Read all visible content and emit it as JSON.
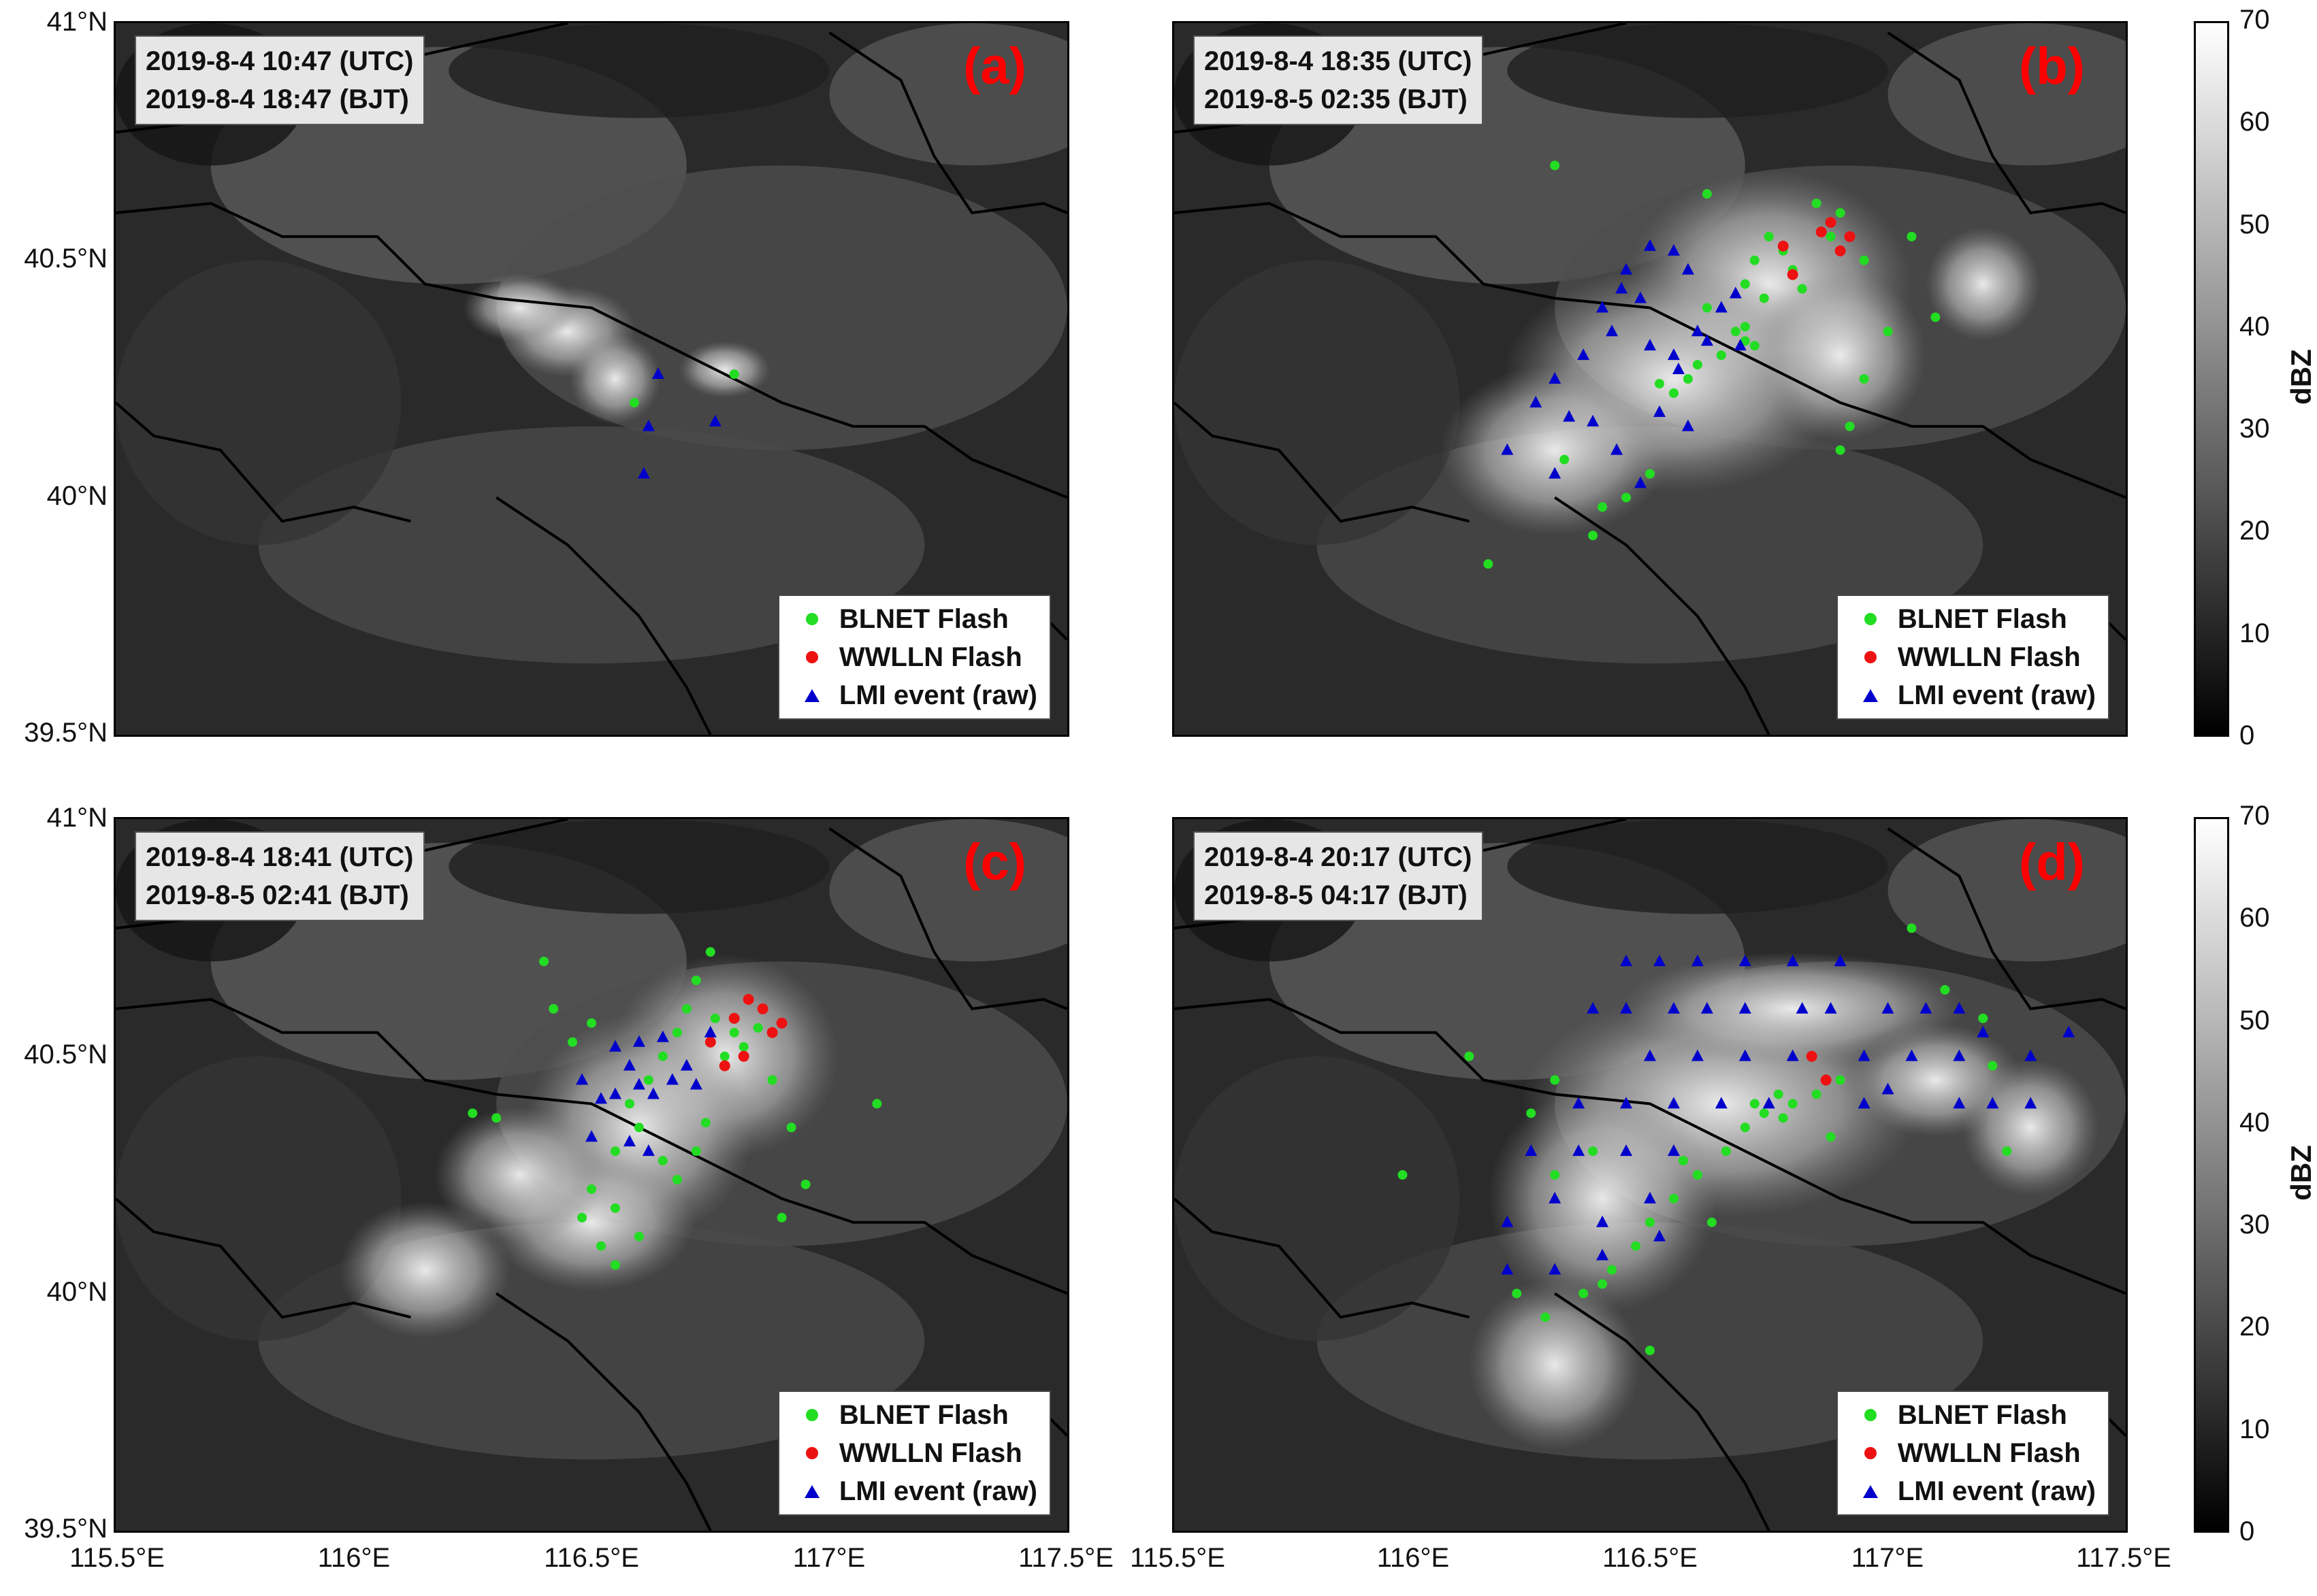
{
  "map_bounds": {
    "lon_min": 115.5,
    "lon_max": 117.5,
    "lat_min": 39.5,
    "lat_max": 41.0
  },
  "y_ticks": [
    {
      "lat": 41.0,
      "label": "41°N"
    },
    {
      "lat": 40.5,
      "label": "40.5°N"
    },
    {
      "lat": 40.0,
      "label": "40°N"
    },
    {
      "lat": 39.5,
      "label": "39.5°N"
    }
  ],
  "x_ticks_left": [
    {
      "lon": 115.5,
      "label": "115.5°E"
    },
    {
      "lon": 116.0,
      "label": "116°E"
    },
    {
      "lon": 116.5,
      "label": "116.5°E"
    },
    {
      "lon": 117.0,
      "label": "117°E"
    },
    {
      "lon": 117.5,
      "label": "117.5°E"
    }
  ],
  "x_ticks_right": [
    {
      "lon": 115.5,
      "label": "115.5°E"
    },
    {
      "lon": 116.0,
      "label": "116°E"
    },
    {
      "lon": 116.5,
      "label": "116.5°E"
    },
    {
      "lon": 117.0,
      "label": "117°E"
    },
    {
      "lon": 117.5,
      "label": "117.5°E"
    }
  ],
  "colorbar": {
    "unit": "dBZ",
    "min": 0,
    "max": 70,
    "ticks": [
      "0",
      "10",
      "20",
      "30",
      "40",
      "50",
      "60",
      "70"
    ]
  },
  "legend": {
    "blnet": "BLNET Flash",
    "wwlln": "WWLLN Flash",
    "lmi": "LMI event (raw)"
  },
  "colors": {
    "blnet": "#22dd22",
    "wwlln": "#ee1111",
    "lmi": "#0000cc",
    "label": "#ff0000"
  },
  "panels": [
    {
      "label": "(a)",
      "utc": "2019-8-4 10:47 (UTC)",
      "bjt": "2019-8-4 18:47 (BJT)",
      "storm": [
        [
          116.45,
          40.35,
          0.12,
          0.08
        ],
        [
          116.55,
          40.25,
          0.08,
          0.08
        ],
        [
          116.78,
          40.27,
          0.08,
          0.05
        ],
        [
          116.35,
          40.4,
          0.1,
          0.06
        ]
      ],
      "blnet": [
        [
          116.59,
          40.2
        ],
        [
          116.8,
          40.26
        ]
      ],
      "wwlln": [],
      "lmi": [
        [
          116.64,
          40.26
        ],
        [
          116.62,
          40.15
        ],
        [
          116.76,
          40.16
        ],
        [
          116.61,
          40.05
        ]
      ]
    },
    {
      "label": "(b)",
      "utc": "2019-8-4 18:35 (UTC)",
      "bjt": "2019-8-5 02:35 (BJT)",
      "storm": [
        [
          116.75,
          40.45,
          0.25,
          0.2
        ],
        [
          116.55,
          40.25,
          0.3,
          0.2
        ],
        [
          116.3,
          40.1,
          0.2,
          0.15
        ],
        [
          116.9,
          40.3,
          0.15,
          0.15
        ],
        [
          117.2,
          40.45,
          0.1,
          0.1
        ]
      ],
      "blnet": [
        [
          116.75,
          40.55
        ],
        [
          116.78,
          40.52
        ],
        [
          116.72,
          40.5
        ],
        [
          116.8,
          40.48
        ],
        [
          116.7,
          40.45
        ],
        [
          116.85,
          40.62
        ],
        [
          116.88,
          40.55
        ],
        [
          116.68,
          40.35
        ],
        [
          116.7,
          40.33
        ],
        [
          116.65,
          40.3
        ],
        [
          116.6,
          40.28
        ],
        [
          116.58,
          40.25
        ],
        [
          116.55,
          40.22
        ],
        [
          116.52,
          40.24
        ],
        [
          116.62,
          40.4
        ],
        [
          116.74,
          40.42
        ],
        [
          116.82,
          40.44
        ],
        [
          116.9,
          40.6
        ],
        [
          116.95,
          40.5
        ],
        [
          117.0,
          40.35
        ],
        [
          116.95,
          40.25
        ],
        [
          116.92,
          40.15
        ],
        [
          116.9,
          40.1
        ],
        [
          116.45,
          40.0
        ],
        [
          116.4,
          39.98
        ],
        [
          116.38,
          39.92
        ],
        [
          116.32,
          40.08
        ],
        [
          116.5,
          40.05
        ],
        [
          116.3,
          40.7
        ],
        [
          116.16,
          39.86
        ],
        [
          116.62,
          40.64
        ],
        [
          117.05,
          40.55
        ],
        [
          117.1,
          40.38
        ],
        [
          116.7,
          40.36
        ],
        [
          116.72,
          40.32
        ]
      ],
      "wwlln": [
        [
          116.78,
          40.53
        ],
        [
          116.8,
          40.47
        ],
        [
          116.86,
          40.56
        ],
        [
          116.9,
          40.52
        ],
        [
          116.92,
          40.55
        ],
        [
          116.88,
          40.58
        ]
      ],
      "lmi": [
        [
          116.5,
          40.53
        ],
        [
          116.55,
          40.52
        ],
        [
          116.45,
          40.48
        ],
        [
          116.48,
          40.42
        ],
        [
          116.4,
          40.4
        ],
        [
          116.42,
          40.35
        ],
        [
          116.5,
          40.32
        ],
        [
          116.55,
          40.3
        ],
        [
          116.6,
          40.35
        ],
        [
          116.65,
          40.4
        ],
        [
          116.62,
          40.33
        ],
        [
          116.68,
          40.43
        ],
        [
          116.58,
          40.48
        ],
        [
          116.36,
          40.3
        ],
        [
          116.3,
          40.25
        ],
        [
          116.26,
          40.2
        ],
        [
          116.33,
          40.17
        ],
        [
          116.2,
          40.1
        ],
        [
          116.3,
          40.05
        ],
        [
          116.43,
          40.1
        ],
        [
          116.48,
          40.03
        ],
        [
          116.58,
          40.15
        ],
        [
          116.52,
          40.18
        ],
        [
          116.38,
          40.16
        ],
        [
          116.44,
          40.44
        ],
        [
          116.56,
          40.27
        ],
        [
          116.69,
          40.32
        ]
      ]
    },
    {
      "label": "(c)",
      "utc": "2019-8-4 18:41 (UTC)",
      "bjt": "2019-8-5 02:41 (BJT)",
      "storm": [
        [
          116.78,
          40.5,
          0.2,
          0.18
        ],
        [
          116.6,
          40.35,
          0.2,
          0.2
        ],
        [
          116.5,
          40.15,
          0.18,
          0.12
        ],
        [
          116.15,
          40.05,
          0.15,
          0.12
        ],
        [
          116.35,
          40.25,
          0.15,
          0.12
        ]
      ],
      "blnet": [
        [
          116.8,
          40.55
        ],
        [
          116.82,
          40.52
        ],
        [
          116.78,
          40.5
        ],
        [
          116.85,
          40.56
        ],
        [
          116.76,
          40.58
        ],
        [
          116.7,
          40.6
        ],
        [
          116.72,
          40.66
        ],
        [
          116.75,
          40.72
        ],
        [
          116.68,
          40.55
        ],
        [
          116.65,
          40.5
        ],
        [
          116.62,
          40.45
        ],
        [
          116.58,
          40.4
        ],
        [
          116.6,
          40.35
        ],
        [
          116.55,
          40.3
        ],
        [
          116.5,
          40.22
        ],
        [
          116.55,
          40.18
        ],
        [
          116.6,
          40.12
        ],
        [
          116.52,
          40.1
        ],
        [
          116.65,
          40.28
        ],
        [
          116.68,
          40.24
        ],
        [
          116.72,
          40.3
        ],
        [
          116.88,
          40.45
        ],
        [
          116.92,
          40.35
        ],
        [
          116.95,
          40.23
        ],
        [
          116.9,
          40.16
        ],
        [
          117.1,
          40.4
        ],
        [
          116.4,
          40.7
        ],
        [
          116.42,
          40.6
        ],
        [
          116.25,
          40.38
        ],
        [
          116.3,
          40.37
        ],
        [
          116.48,
          40.16
        ],
        [
          116.55,
          40.06
        ],
        [
          116.46,
          40.53
        ],
        [
          116.5,
          40.57
        ],
        [
          116.74,
          40.36
        ]
      ],
      "wwlln": [
        [
          116.8,
          40.58
        ],
        [
          116.83,
          40.62
        ],
        [
          116.86,
          40.6
        ],
        [
          116.88,
          40.55
        ],
        [
          116.82,
          40.5
        ],
        [
          116.78,
          40.48
        ],
        [
          116.75,
          40.53
        ],
        [
          116.9,
          40.57
        ]
      ],
      "lmi": [
        [
          116.55,
          40.52
        ],
        [
          116.6,
          40.53
        ],
        [
          116.65,
          40.54
        ],
        [
          116.58,
          40.48
        ],
        [
          116.6,
          40.44
        ],
        [
          116.63,
          40.42
        ],
        [
          116.67,
          40.45
        ],
        [
          116.7,
          40.48
        ],
        [
          116.72,
          40.44
        ],
        [
          116.55,
          40.42
        ],
        [
          116.52,
          40.41
        ],
        [
          116.48,
          40.45
        ],
        [
          116.5,
          40.33
        ],
        [
          116.58,
          40.32
        ],
        [
          116.62,
          40.3
        ],
        [
          116.75,
          40.55
        ]
      ]
    },
    {
      "label": "(d)",
      "utc": "2019-8-4 20:17 (UTC)",
      "bjt": "2019-8-5 04:17 (BJT)",
      "storm": [
        [
          116.65,
          40.4,
          0.35,
          0.2
        ],
        [
          116.4,
          40.2,
          0.2,
          0.2
        ],
        [
          116.3,
          39.85,
          0.15,
          0.15
        ],
        [
          117.1,
          40.45,
          0.15,
          0.1
        ],
        [
          117.3,
          40.35,
          0.12,
          0.12
        ],
        [
          116.8,
          40.6,
          0.3,
          0.1
        ]
      ],
      "blnet": [
        [
          116.72,
          40.4
        ],
        [
          116.74,
          40.38
        ],
        [
          116.77,
          40.42
        ],
        [
          116.7,
          40.35
        ],
        [
          116.78,
          40.37
        ],
        [
          116.8,
          40.4
        ],
        [
          116.66,
          40.3
        ],
        [
          116.6,
          40.25
        ],
        [
          116.55,
          40.2
        ],
        [
          116.5,
          40.15
        ],
        [
          116.47,
          40.1
        ],
        [
          116.42,
          40.05
        ],
        [
          116.36,
          40.0
        ],
        [
          116.4,
          40.02
        ],
        [
          116.28,
          39.95
        ],
        [
          116.22,
          40.0
        ],
        [
          116.12,
          40.5
        ],
        [
          116.3,
          40.45
        ],
        [
          116.38,
          40.3
        ],
        [
          116.3,
          40.25
        ],
        [
          116.85,
          40.42
        ],
        [
          116.9,
          40.45
        ],
        [
          117.05,
          40.77
        ],
        [
          117.12,
          40.64
        ],
        [
          117.2,
          40.58
        ],
        [
          117.22,
          40.48
        ],
        [
          117.25,
          40.3
        ],
        [
          116.88,
          40.33
        ],
        [
          116.25,
          40.38
        ],
        [
          115.98,
          40.25
        ],
        [
          116.5,
          39.88
        ],
        [
          116.63,
          40.15
        ],
        [
          116.57,
          40.28
        ]
      ],
      "wwlln": [
        [
          116.84,
          40.5
        ],
        [
          116.87,
          40.45
        ]
      ],
      "lmi": [
        [
          116.45,
          40.7
        ],
        [
          116.52,
          40.7
        ],
        [
          116.6,
          40.7
        ],
        [
          116.7,
          40.7
        ],
        [
          116.8,
          40.7
        ],
        [
          116.9,
          40.7
        ],
        [
          116.38,
          40.6
        ],
        [
          116.45,
          40.6
        ],
        [
          116.55,
          40.6
        ],
        [
          116.62,
          40.6
        ],
        [
          116.7,
          40.6
        ],
        [
          116.82,
          40.6
        ],
        [
          116.88,
          40.6
        ],
        [
          117.0,
          40.6
        ],
        [
          117.08,
          40.6
        ],
        [
          117.15,
          40.6
        ],
        [
          117.2,
          40.55
        ],
        [
          116.5,
          40.5
        ],
        [
          116.6,
          40.5
        ],
        [
          116.7,
          40.5
        ],
        [
          116.8,
          40.5
        ],
        [
          116.95,
          40.5
        ],
        [
          117.05,
          40.5
        ],
        [
          117.15,
          40.5
        ],
        [
          117.3,
          40.5
        ],
        [
          116.35,
          40.4
        ],
        [
          116.45,
          40.4
        ],
        [
          116.55,
          40.4
        ],
        [
          116.65,
          40.4
        ],
        [
          116.75,
          40.4
        ],
        [
          116.95,
          40.4
        ],
        [
          117.0,
          40.43
        ],
        [
          117.15,
          40.4
        ],
        [
          117.22,
          40.4
        ],
        [
          117.3,
          40.4
        ],
        [
          117.38,
          40.55
        ],
        [
          116.25,
          40.3
        ],
        [
          116.35,
          40.3
        ],
        [
          116.45,
          40.3
        ],
        [
          116.55,
          40.3
        ],
        [
          116.2,
          40.15
        ],
        [
          116.3,
          40.2
        ],
        [
          116.4,
          40.15
        ],
        [
          116.5,
          40.2
        ],
        [
          116.2,
          40.05
        ],
        [
          116.3,
          40.05
        ],
        [
          116.4,
          40.08
        ],
        [
          116.52,
          40.12
        ]
      ]
    }
  ]
}
